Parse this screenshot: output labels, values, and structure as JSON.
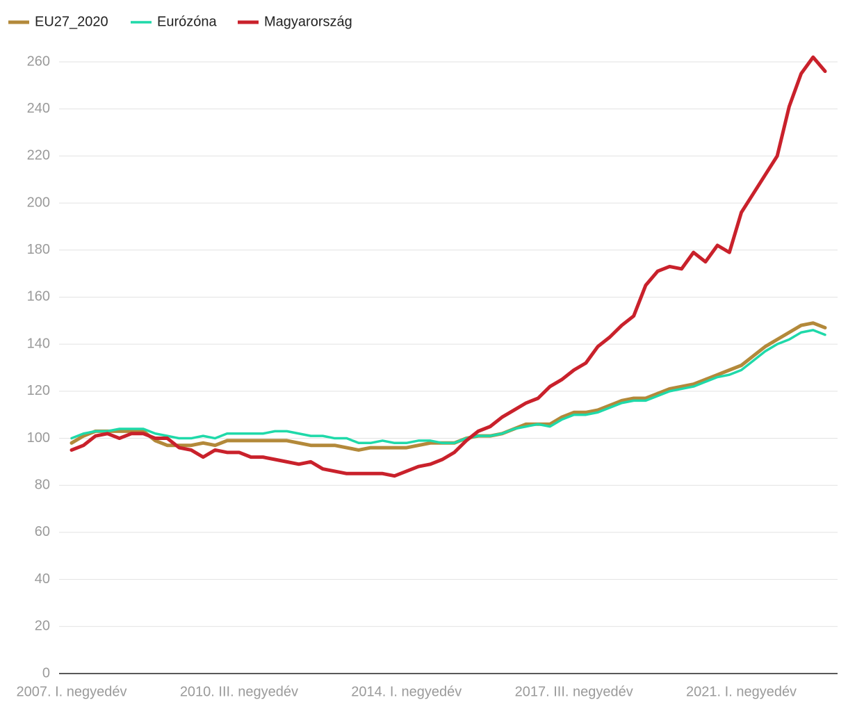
{
  "chart_data": {
    "type": "line",
    "categories": [
      "2007. I. negyedév",
      null,
      null,
      null,
      null,
      null,
      null,
      null,
      null,
      null,
      null,
      null,
      null,
      null,
      "2010. III. negyedév",
      null,
      null,
      null,
      null,
      null,
      null,
      null,
      null,
      null,
      null,
      null,
      null,
      null,
      "2014. I. negyedév",
      null,
      null,
      null,
      null,
      null,
      null,
      null,
      null,
      null,
      null,
      null,
      null,
      null,
      "2017. III. negyedév",
      null,
      null,
      null,
      null,
      null,
      null,
      null,
      null,
      null,
      null,
      null,
      null,
      null,
      "2021. I. negyedév",
      null,
      null,
      null,
      null,
      null,
      null,
      null
    ],
    "series": [
      {
        "name": "EU27_2020",
        "color": "#b3893a",
        "values": [
          98,
          101,
          103,
          103,
          103,
          103,
          103,
          99,
          97,
          97,
          97,
          98,
          97,
          99,
          99,
          99,
          99,
          99,
          99,
          98,
          97,
          97,
          97,
          96,
          95,
          96,
          96,
          96,
          96,
          97,
          98,
          98,
          98,
          100,
          101,
          101,
          102,
          104,
          106,
          106,
          106,
          109,
          111,
          111,
          112,
          114,
          116,
          117,
          117,
          119,
          121,
          122,
          123,
          125,
          127,
          129,
          131,
          135,
          139,
          142,
          145,
          148,
          149,
          147
        ]
      },
      {
        "name": "Eurózóna",
        "color": "#1fd9a9",
        "values": [
          100,
          102,
          103,
          103,
          104,
          104,
          104,
          102,
          101,
          100,
          100,
          101,
          100,
          102,
          102,
          102,
          102,
          103,
          103,
          102,
          101,
          101,
          100,
          100,
          98,
          98,
          99,
          98,
          98,
          99,
          99,
          98,
          98,
          100,
          101,
          101,
          102,
          104,
          105,
          106,
          105,
          108,
          110,
          110,
          111,
          113,
          115,
          116,
          116,
          118,
          120,
          121,
          122,
          124,
          126,
          127,
          129,
          133,
          137,
          140,
          142,
          145,
          146,
          144
        ]
      },
      {
        "name": "Magyarország",
        "color": "#c9212b",
        "values": [
          95,
          97,
          101,
          102,
          100,
          102,
          102,
          100,
          100,
          96,
          95,
          92,
          95,
          94,
          94,
          92,
          92,
          91,
          90,
          89,
          90,
          87,
          86,
          85,
          85,
          85,
          85,
          84,
          86,
          88,
          89,
          91,
          94,
          99,
          103,
          105,
          109,
          112,
          115,
          117,
          122,
          125,
          129,
          132,
          139,
          143,
          148,
          152,
          165,
          171,
          173,
          172,
          179,
          175,
          182,
          179,
          196,
          204,
          212,
          220,
          241,
          255,
          262,
          256
        ]
      }
    ],
    "ylim": [
      0,
      260
    ],
    "yticks": [
      0,
      20,
      40,
      60,
      80,
      100,
      120,
      140,
      160,
      180,
      200,
      220,
      240,
      260
    ],
    "grid": true,
    "legend": "top-left"
  }
}
